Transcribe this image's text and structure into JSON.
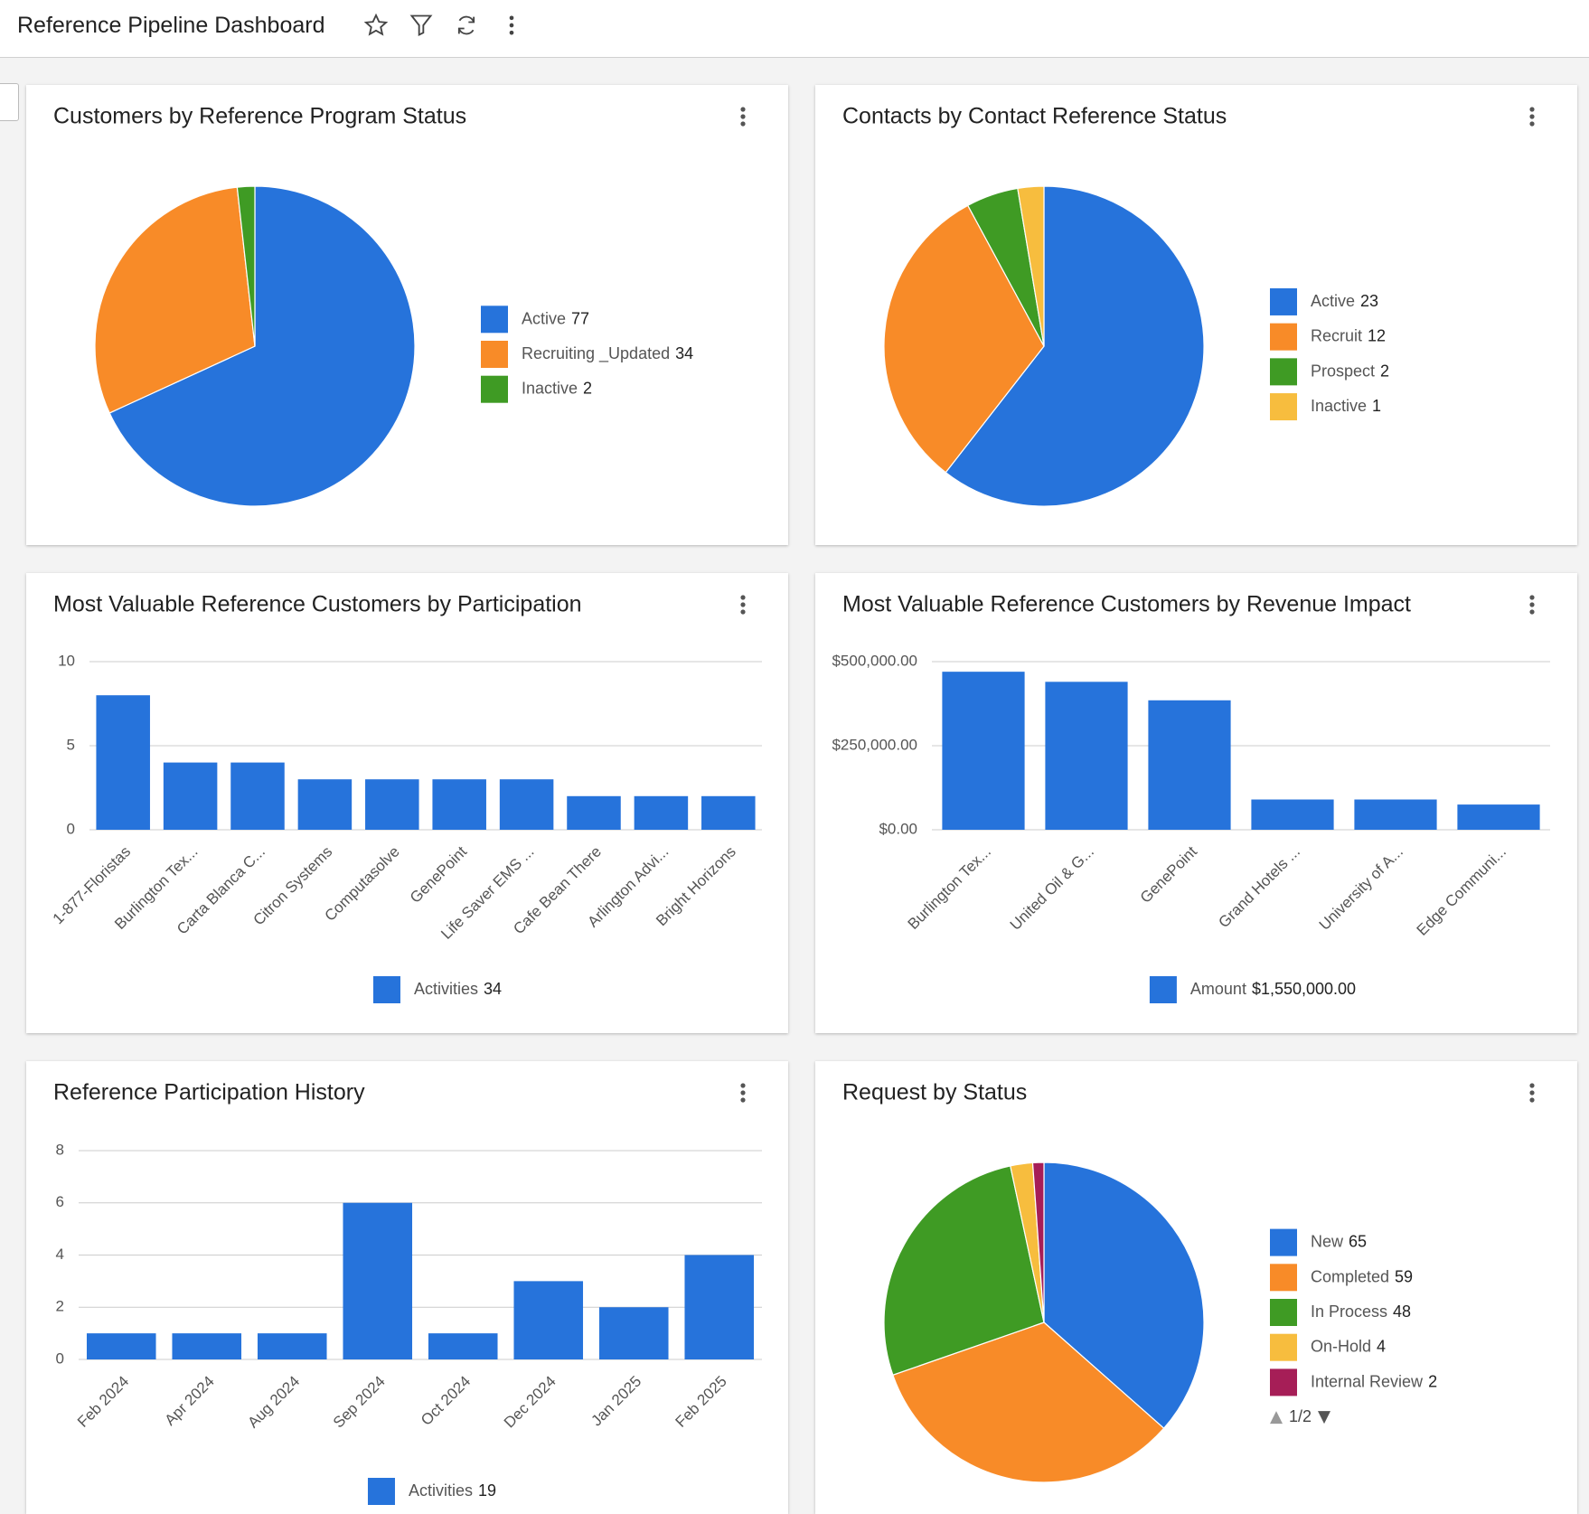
{
  "header": {
    "title": "Reference Pipeline Dashboard"
  },
  "chart_data": [
    {
      "type": "pie",
      "title": "Customers by Reference Program Status",
      "categories": [
        "Active",
        "Recruiting _Updated",
        "Inactive"
      ],
      "values": [
        77,
        34,
        2
      ],
      "colors": [
        "#2673db",
        "#f88b28",
        "#3f9b24"
      ]
    },
    {
      "type": "pie",
      "title": "Contacts by Contact Reference Status",
      "categories": [
        "Active",
        "Recruit",
        "Prospect",
        "Inactive"
      ],
      "values": [
        23,
        12,
        2,
        1
      ],
      "colors": [
        "#2673db",
        "#f88b28",
        "#3f9b24",
        "#f7bd3e"
      ]
    },
    {
      "type": "bar",
      "title": "Most Valuable Reference Customers by Participation",
      "categories": [
        "1-877-Floristas",
        "Burlington Tex...",
        "Carta Blanca C...",
        "Citron Systems",
        "Computasolve",
        "GenePoint",
        "Life Saver EMS ...",
        "Cafe Bean There",
        "Arlington Advi...",
        "Bright Horizons"
      ],
      "series": [
        {
          "name": "Activities",
          "color": "#2673db",
          "values": [
            8,
            4,
            4,
            3,
            3,
            3,
            3,
            2,
            2,
            2
          ],
          "total": 34
        }
      ],
      "ylim": [
        0,
        10
      ],
      "yticks": [
        0,
        5,
        10
      ],
      "grid": true
    },
    {
      "type": "bar",
      "title": "Most Valuable Reference Customers by Revenue Impact",
      "categories": [
        "Burlington Tex...",
        "United Oil & G...",
        "GenePoint",
        "Grand Hotels ...",
        "University of A...",
        "Edge Communi..."
      ],
      "series": [
        {
          "name": "Amount",
          "color": "#2673db",
          "values": [
            470000,
            440000,
            385000,
            90000,
            90000,
            75000
          ],
          "total": {
            "value": 1550000,
            "label": "$1,550,000.00"
          }
        }
      ],
      "ylim": [
        0,
        500000
      ],
      "yticks": [
        {
          "value": 0,
          "label": "$0.00"
        },
        {
          "value": 250000,
          "label": "$250,000.00"
        },
        {
          "value": 500000,
          "label": "$500,000.00"
        }
      ],
      "grid": true
    },
    {
      "type": "bar",
      "title": "Reference Participation History",
      "categories": [
        "Feb 2024",
        "Apr 2024",
        "Aug 2024",
        "Sep 2024",
        "Oct 2024",
        "Dec 2024",
        "Jan 2025",
        "Feb 2025"
      ],
      "series": [
        {
          "name": "Activities",
          "color": "#2673db",
          "values": [
            1,
            1,
            1,
            6,
            1,
            3,
            2,
            4
          ],
          "total": 19
        }
      ],
      "ylim": [
        0,
        8
      ],
      "yticks": [
        0,
        2,
        4,
        6,
        8
      ],
      "grid": true
    },
    {
      "type": "pie",
      "title": "Request by Status",
      "categories": [
        "New",
        "Completed",
        "In Process",
        "On-Hold",
        "Internal Review"
      ],
      "values": [
        65,
        59,
        48,
        4,
        2
      ],
      "colors": [
        "#2673db",
        "#f88b28",
        "#3f9b24",
        "#f7bd3e",
        "#a61e57"
      ],
      "legend_pager": "1/2"
    }
  ]
}
